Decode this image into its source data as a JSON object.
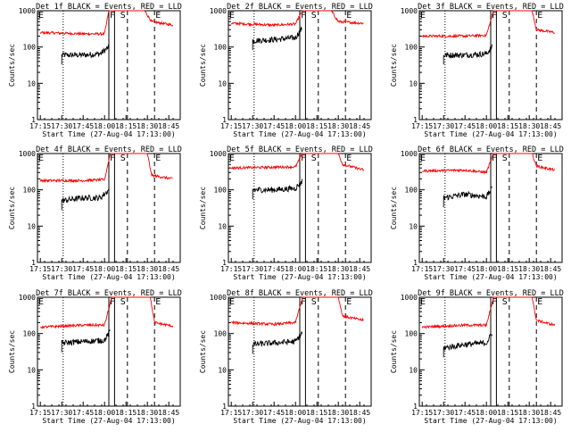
{
  "chart_data": [
    {
      "type": "line",
      "title": "Det 1f BLACK = Events, RED = LLD",
      "xlabel": "Start Time (27-Aug-04 17:13:00)",
      "ylabel": "Counts/sec",
      "yscale": "log",
      "ylim": [
        1,
        1000
      ],
      "y_ticks": [
        "1",
        "10",
        "100",
        "1000"
      ],
      "x_ticks": [
        "17:15",
        "17:30",
        "17:45",
        "18:00",
        "18:15",
        "18:30",
        "18:45"
      ],
      "markers": [
        "E",
        "F",
        "S",
        "E"
      ],
      "series": [
        {
          "name": "BLACK = Events",
          "color": "#000000",
          "x": [
            "17:30",
            "17:45",
            "17:57",
            "18:03"
          ],
          "y": [
            60,
            60,
            65,
            100
          ]
        },
        {
          "name": "RED = LLD",
          "color": "#ff0000",
          "x": [
            "17:15",
            "17:45",
            "18:00",
            "18:03",
            "18:04",
            "18:28",
            "18:33",
            "18:48"
          ],
          "y": [
            250,
            230,
            230,
            1000,
            1000,
            1000,
            500,
            400
          ]
        }
      ]
    },
    {
      "type": "line",
      "title": "Det 2f BLACK = Events, RED = LLD",
      "xlabel": "Start Time (27-Aug-04 17:13:00)",
      "ylabel": "Counts/sec",
      "yscale": "log",
      "ylim": [
        1,
        1000
      ],
      "y_ticks": [
        "1",
        "10",
        "100",
        "1000"
      ],
      "x_ticks": [
        "17:15",
        "17:30",
        "17:45",
        "18:00",
        "18:15",
        "18:30",
        "18:45"
      ],
      "markers": [
        "E",
        "F",
        "S",
        "E"
      ],
      "series": [
        {
          "name": "BLACK = Events",
          "color": "#000000",
          "x": [
            "17:30",
            "17:45",
            "18:00",
            "18:05"
          ],
          "y": [
            150,
            160,
            180,
            350
          ]
        },
        {
          "name": "RED = LLD",
          "color": "#ff0000",
          "x": [
            "17:15",
            "17:45",
            "18:00",
            "18:05",
            "18:07",
            "18:25",
            "18:30",
            "18:48"
          ],
          "y": [
            450,
            400,
            430,
            1000,
            1000,
            1000,
            500,
            450
          ]
        }
      ]
    },
    {
      "type": "line",
      "title": "Det 3f BLACK = Events, RED = LLD",
      "xlabel": "Start Time (27-Aug-04 17:13:00)",
      "ylabel": "Counts/sec",
      "yscale": "log",
      "ylim": [
        1,
        1000
      ],
      "y_ticks": [
        "1",
        "10",
        "100",
        "1000"
      ],
      "x_ticks": [
        "17:15",
        "17:30",
        "17:45",
        "18:00",
        "18:15",
        "18:30",
        "18:45"
      ],
      "markers": [
        "E",
        "F",
        "S",
        "E"
      ],
      "series": [
        {
          "name": "BLACK = Events",
          "color": "#000000",
          "x": [
            "17:30",
            "17:45",
            "18:00",
            "18:04"
          ],
          "y": [
            60,
            60,
            65,
            100
          ]
        },
        {
          "name": "RED = LLD",
          "color": "#ff0000",
          "x": [
            "17:15",
            "17:45",
            "18:00",
            "18:05",
            "18:06",
            "18:32",
            "18:35",
            "18:48"
          ],
          "y": [
            200,
            200,
            210,
            1000,
            1000,
            1000,
            300,
            250
          ]
        }
      ]
    },
    {
      "type": "line",
      "title": "Det 4f BLACK = Events, RED = LLD",
      "xlabel": "Start Time (27-Aug-04 17:13:00)",
      "ylabel": "Counts/sec",
      "yscale": "log",
      "ylim": [
        1,
        1000
      ],
      "y_ticks": [
        "1",
        "10",
        "100",
        "1000"
      ],
      "x_ticks": [
        "17:15",
        "17:30",
        "17:45",
        "18:00",
        "18:15",
        "18:30",
        "18:45"
      ],
      "markers": [
        "E",
        "F",
        "S",
        "E"
      ],
      "series": [
        {
          "name": "BLACK = Events",
          "color": "#000000",
          "x": [
            "17:30",
            "17:45",
            "17:57",
            "18:03"
          ],
          "y": [
            50,
            60,
            60,
            100
          ]
        },
        {
          "name": "RED = LLD",
          "color": "#ff0000",
          "x": [
            "17:15",
            "17:45",
            "18:00",
            "18:04",
            "18:06",
            "18:30",
            "18:33",
            "18:48"
          ],
          "y": [
            180,
            180,
            190,
            1000,
            1000,
            1000,
            250,
            200
          ]
        }
      ]
    },
    {
      "type": "line",
      "title": "Det 5f BLACK = Events, RED = LLD",
      "xlabel": "Start Time (27-Aug-04 17:13:00)",
      "ylabel": "Counts/sec",
      "yscale": "log",
      "ylim": [
        1,
        1000
      ],
      "y_ticks": [
        "1",
        "10",
        "100",
        "1000"
      ],
      "x_ticks": [
        "17:15",
        "17:30",
        "17:45",
        "18:00",
        "18:15",
        "18:30",
        "18:45"
      ],
      "markers": [
        "E",
        "F",
        "S",
        "E"
      ],
      "series": [
        {
          "name": "BLACK = Events",
          "color": "#000000",
          "x": [
            "17:30",
            "17:45",
            "18:00",
            "18:05"
          ],
          "y": [
            100,
            100,
            110,
            180
          ]
        },
        {
          "name": "RED = LLD",
          "color": "#ff0000",
          "x": [
            "17:15",
            "17:45",
            "18:00",
            "18:05",
            "18:07",
            "18:30",
            "18:33",
            "18:48"
          ],
          "y": [
            400,
            420,
            430,
            1000,
            1000,
            1000,
            500,
            350
          ]
        }
      ]
    },
    {
      "type": "line",
      "title": "Det 6f BLACK = Events, RED = LLD",
      "xlabel": "Start Time (27-Aug-04 17:13:00)",
      "ylabel": "Counts/sec",
      "yscale": "log",
      "ylim": [
        1,
        1000
      ],
      "y_ticks": [
        "1",
        "10",
        "100",
        "1000"
      ],
      "x_ticks": [
        "17:15",
        "17:30",
        "17:45",
        "18:00",
        "18:15",
        "18:30",
        "18:45"
      ],
      "markers": [
        "E",
        "F",
        "S",
        "E"
      ],
      "series": [
        {
          "name": "BLACK = Events",
          "color": "#000000",
          "x": [
            "17:30",
            "17:45",
            "18:00",
            "18:04"
          ],
          "y": [
            60,
            75,
            65,
            110
          ]
        },
        {
          "name": "RED = LLD",
          "color": "#ff0000",
          "x": [
            "17:15",
            "17:45",
            "18:00",
            "18:05",
            "18:06",
            "18:32",
            "18:35",
            "18:48"
          ],
          "y": [
            330,
            350,
            300,
            1000,
            1000,
            1000,
            450,
            350
          ]
        }
      ]
    },
    {
      "type": "line",
      "title": "Det 7f BLACK = Events, RED = LLD",
      "xlabel": "Start Time (27-Aug-04 17:13:00)",
      "ylabel": "Counts/sec",
      "yscale": "log",
      "ylim": [
        1,
        1000
      ],
      "y_ticks": [
        "1",
        "10",
        "100",
        "1000"
      ],
      "x_ticks": [
        "17:15",
        "17:30",
        "17:45",
        "18:00",
        "18:15",
        "18:30",
        "18:45"
      ],
      "markers": [
        "E",
        "F",
        "S",
        "E"
      ],
      "series": [
        {
          "name": "BLACK = Events",
          "color": "#000000",
          "x": [
            "17:30",
            "17:45",
            "18:00",
            "18:04"
          ],
          "y": [
            55,
            60,
            65,
            120
          ]
        },
        {
          "name": "RED = LLD",
          "color": "#ff0000",
          "x": [
            "17:15",
            "17:45",
            "18:00",
            "18:05",
            "18:06",
            "18:32",
            "18:35",
            "18:48"
          ],
          "y": [
            150,
            170,
            170,
            1000,
            1000,
            1000,
            200,
            160
          ]
        }
      ]
    },
    {
      "type": "line",
      "title": "Det 8f BLACK = Events, RED = LLD",
      "xlabel": "Start Time (27-Aug-04 17:13:00)",
      "ylabel": "Counts/sec",
      "yscale": "log",
      "ylim": [
        1,
        1000
      ],
      "y_ticks": [
        "1",
        "10",
        "100",
        "1000"
      ],
      "x_ticks": [
        "17:15",
        "17:30",
        "17:45",
        "18:00",
        "18:15",
        "18:30",
        "18:45"
      ],
      "markers": [
        "E",
        "F",
        "S",
        "E"
      ],
      "series": [
        {
          "name": "BLACK = Events",
          "color": "#000000",
          "x": [
            "17:30",
            "17:45",
            "18:00",
            "18:05"
          ],
          "y": [
            50,
            55,
            60,
            110
          ]
        },
        {
          "name": "RED = LLD",
          "color": "#ff0000",
          "x": [
            "17:15",
            "17:45",
            "18:00",
            "18:05",
            "18:07",
            "18:30",
            "18:33",
            "18:48"
          ],
          "y": [
            200,
            180,
            200,
            1000,
            1000,
            1000,
            300,
            230
          ]
        }
      ]
    },
    {
      "type": "line",
      "title": "Det 9f BLACK = Events, RED = LLD",
      "xlabel": "Start Time (27-Aug-04 17:13:00)",
      "ylabel": "Counts/sec",
      "yscale": "log",
      "ylim": [
        1,
        1000
      ],
      "y_ticks": [
        "1",
        "10",
        "100",
        "1000"
      ],
      "x_ticks": [
        "17:15",
        "17:30",
        "17:45",
        "18:00",
        "18:15",
        "18:30",
        "18:45"
      ],
      "markers": [
        "E",
        "F",
        "S",
        "E"
      ],
      "series": [
        {
          "name": "BLACK = Events",
          "color": "#000000",
          "x": [
            "17:30",
            "17:45",
            "18:00",
            "18:04"
          ],
          "y": [
            40,
            50,
            55,
            100
          ]
        },
        {
          "name": "RED = LLD",
          "color": "#ff0000",
          "x": [
            "17:15",
            "17:45",
            "18:00",
            "18:05",
            "18:06",
            "18:32",
            "18:35",
            "18:48"
          ],
          "y": [
            150,
            170,
            170,
            1000,
            1000,
            1000,
            230,
            170
          ]
        }
      ]
    }
  ]
}
